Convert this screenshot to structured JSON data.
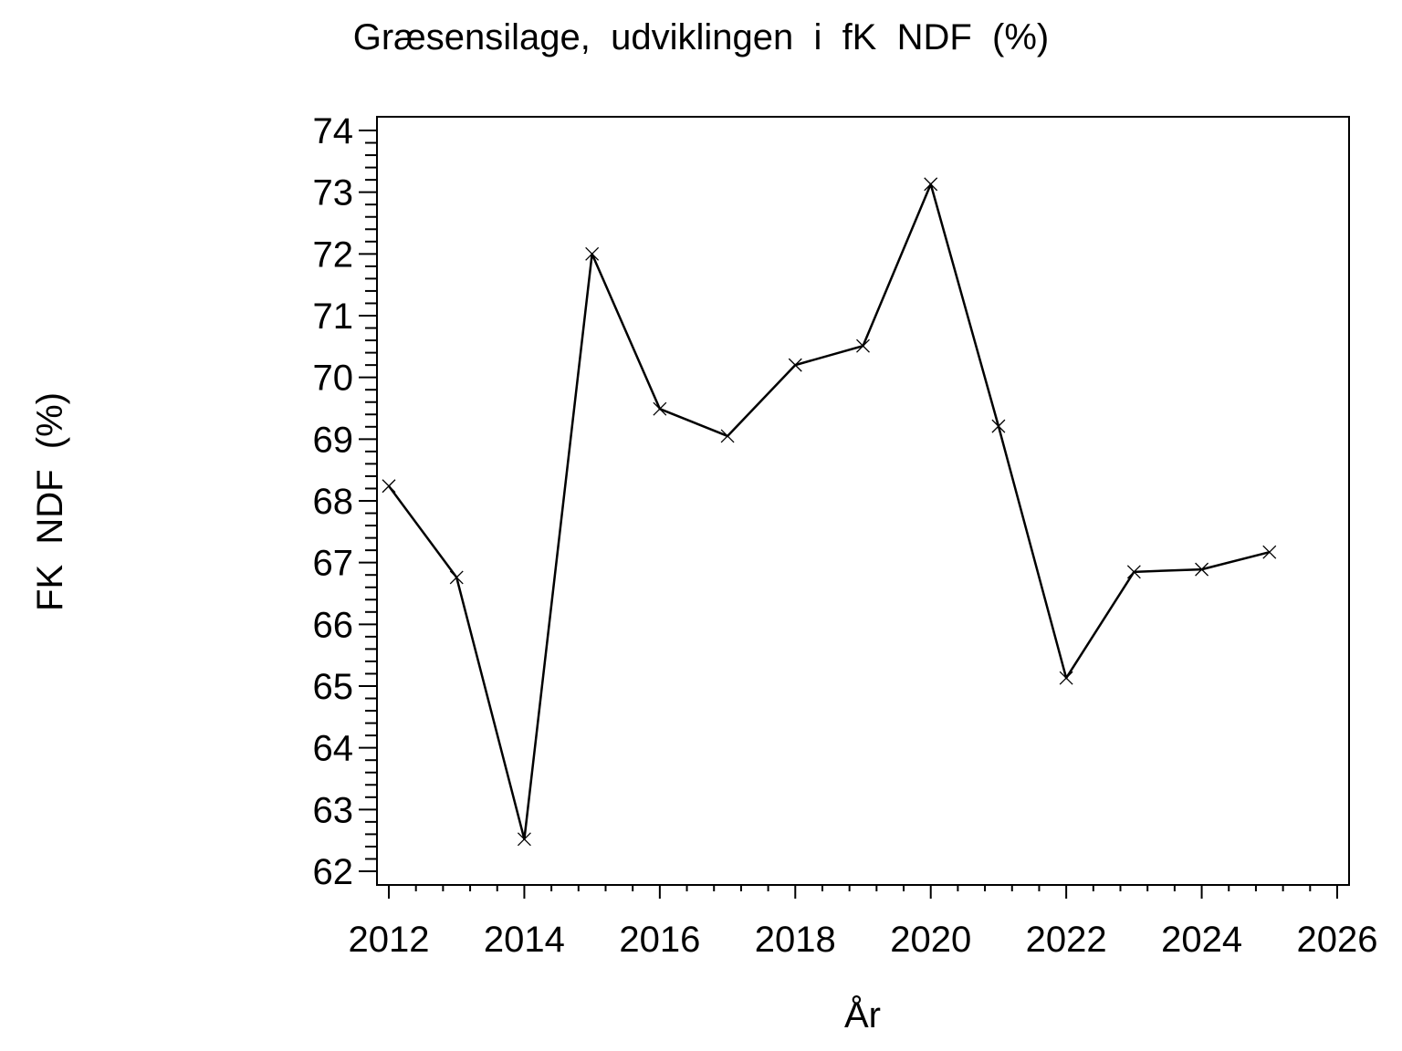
{
  "chart_data": {
    "type": "line",
    "title": "Græsensilage,  udviklingen  i  fK  NDF  (%)",
    "xlabel": "År",
    "ylabel": "FK  NDF  (%)",
    "xlim": [
      2012,
      2026
    ],
    "ylim": [
      62,
      74
    ],
    "xticks": [
      2012,
      2014,
      2016,
      2018,
      2020,
      2022,
      2024,
      2026
    ],
    "yticks": [
      62,
      63,
      64,
      65,
      66,
      67,
      68,
      69,
      70,
      71,
      72,
      73,
      74
    ],
    "grid": false,
    "marker": "x",
    "color": "#000000",
    "series": [
      {
        "name": "fK NDF",
        "x": [
          2012,
          2013,
          2014,
          2015,
          2016,
          2017,
          2018,
          2019,
          2020,
          2021,
          2022,
          2023,
          2024,
          2025
        ],
        "y": [
          68.24,
          66.76,
          62.52,
          72.0,
          69.49,
          69.05,
          70.2,
          70.51,
          73.13,
          69.21,
          65.13,
          66.85,
          66.89,
          67.17
        ]
      }
    ]
  }
}
